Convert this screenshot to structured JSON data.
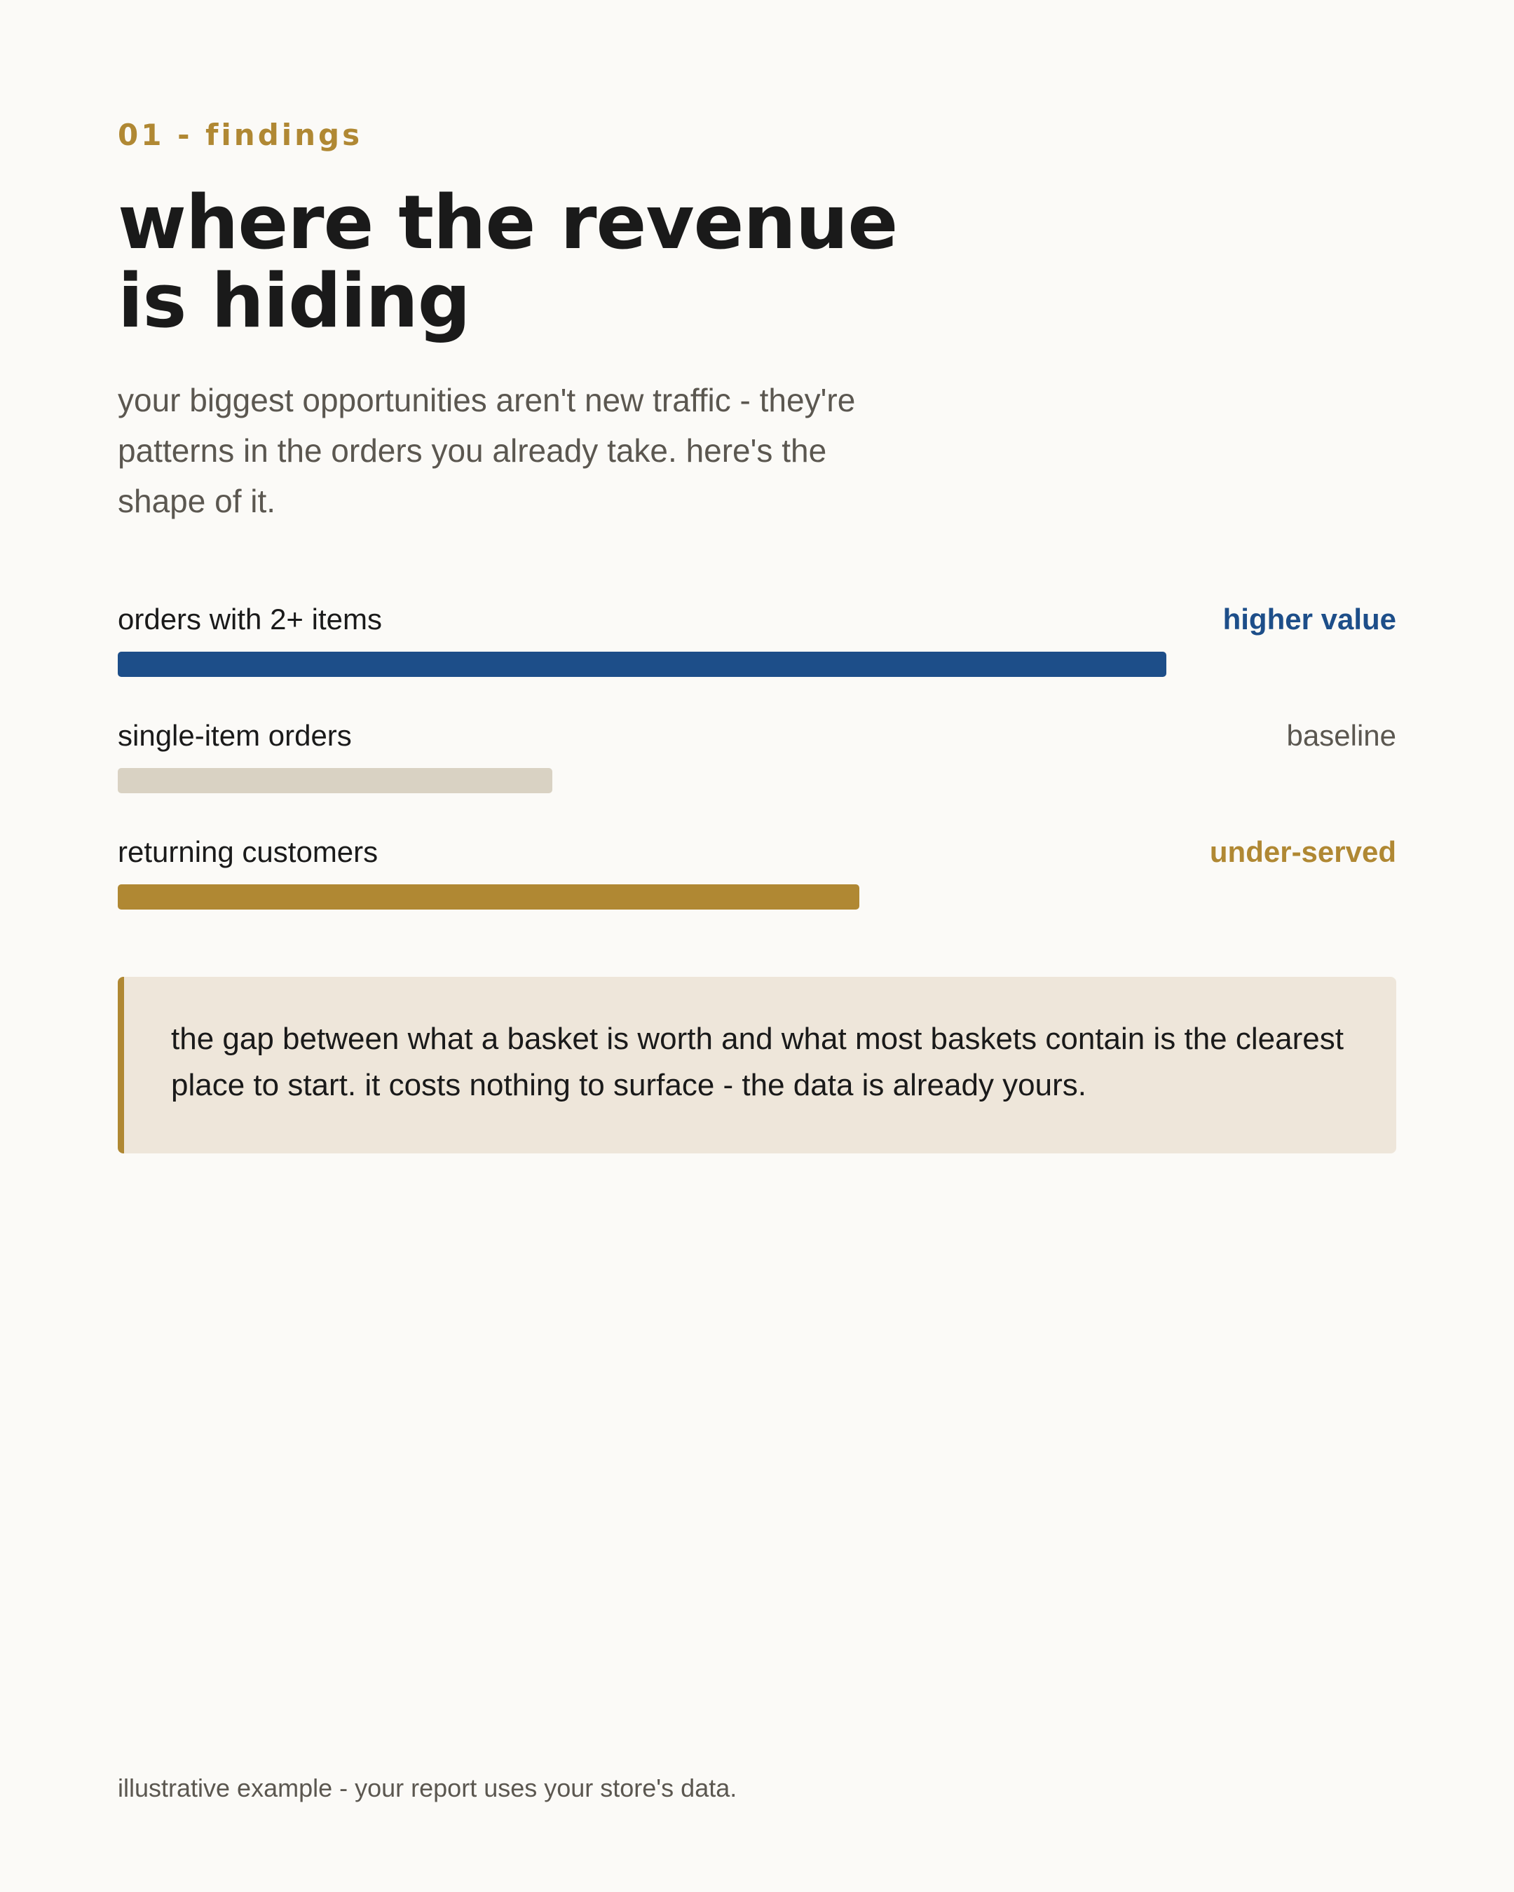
{
  "eyebrow": "01 - findings",
  "title": "where the revenue is hiding",
  "subtitle": "your biggest opportunities aren't new traffic - they're patterns in the orders you already take. here's the shape of it.",
  "colors": {
    "accent_gold": "#b08833",
    "accent_blue": "#1d4e89",
    "baseline_gray": "#d9d2c3",
    "muted_text": "#5b5750",
    "callout_bg": "#eee6da",
    "page_bg": "#fbfaf7"
  },
  "bars": [
    {
      "label": "orders with 2+ items",
      "tag": "higher value",
      "fill_fraction": 0.82,
      "color": "#1d4e89",
      "tag_color": "#1d4e89",
      "tag_bold": true
    },
    {
      "label": "single-item orders",
      "tag": "baseline",
      "fill_fraction": 0.34,
      "color": "#d9d2c3",
      "tag_color": "#5b5750",
      "tag_bold": false
    },
    {
      "label": "returning customers",
      "tag": "under-served",
      "fill_fraction": 0.58,
      "color": "#b08833",
      "tag_color": "#b08833",
      "tag_bold": true
    }
  ],
  "callout": {
    "text": "the gap between what a basket is worth and what most baskets contain is the clearest place to start. it costs nothing to surface - the data is already yours."
  },
  "footnote": "illustrative example - your report uses your store's data."
}
